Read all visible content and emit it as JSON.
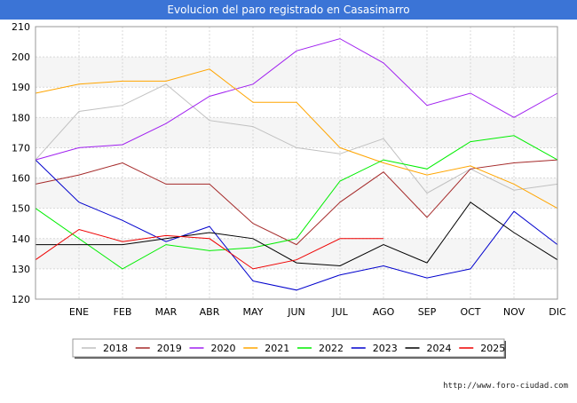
{
  "header": {
    "title": "Evolucion del paro registrado en Casasimarro"
  },
  "footer": {
    "url": "http://www.foro-ciudad.com"
  },
  "chart_data": {
    "type": "line",
    "title": "Evolucion del paro registrado en Casasimarro",
    "xlabel": "",
    "ylabel": "",
    "categories": [
      "",
      "ENE",
      "FEB",
      "MAR",
      "ABR",
      "MAY",
      "JUN",
      "JUL",
      "AGO",
      "SEP",
      "OCT",
      "NOV",
      "DIC"
    ],
    "ylim": [
      120,
      210
    ],
    "yticks": [
      120,
      130,
      140,
      150,
      160,
      170,
      180,
      190,
      200,
      210
    ],
    "grid": true,
    "legend_position": "bottom",
    "series": [
      {
        "name": "2018",
        "color": "#c0c0c0",
        "values": [
          166,
          182,
          184,
          191,
          179,
          177,
          170,
          168,
          173,
          155,
          163,
          156,
          158
        ]
      },
      {
        "name": "2019",
        "color": "#a52a2a",
        "values": [
          158,
          161,
          165,
          158,
          158,
          145,
          138,
          152,
          162,
          147,
          163,
          165,
          166
        ]
      },
      {
        "name": "2020",
        "color": "#a020f0",
        "values": [
          166,
          170,
          171,
          178,
          187,
          191,
          202,
          206,
          198,
          184,
          188,
          180,
          188
        ]
      },
      {
        "name": "2021",
        "color": "#ffa500",
        "values": [
          188,
          191,
          192,
          192,
          196,
          185,
          185,
          170,
          165,
          161,
          164,
          158,
          150
        ]
      },
      {
        "name": "2022",
        "color": "#00ee00",
        "values": [
          150,
          140,
          130,
          138,
          136,
          137,
          140,
          159,
          166,
          163,
          172,
          174,
          166
        ]
      },
      {
        "name": "2023",
        "color": "#0000cd",
        "values": [
          166,
          152,
          146,
          139,
          144,
          126,
          123,
          128,
          131,
          127,
          130,
          149,
          138
        ]
      },
      {
        "name": "2024",
        "color": "#000000",
        "values": [
          138,
          138,
          138,
          140,
          142,
          140,
          132,
          131,
          138,
          132,
          152,
          142,
          133
        ]
      },
      {
        "name": "2025",
        "color": "#ee0000",
        "values": [
          133,
          143,
          139,
          141,
          140,
          130,
          133,
          140,
          140,
          null,
          null,
          null,
          null
        ]
      }
    ]
  }
}
